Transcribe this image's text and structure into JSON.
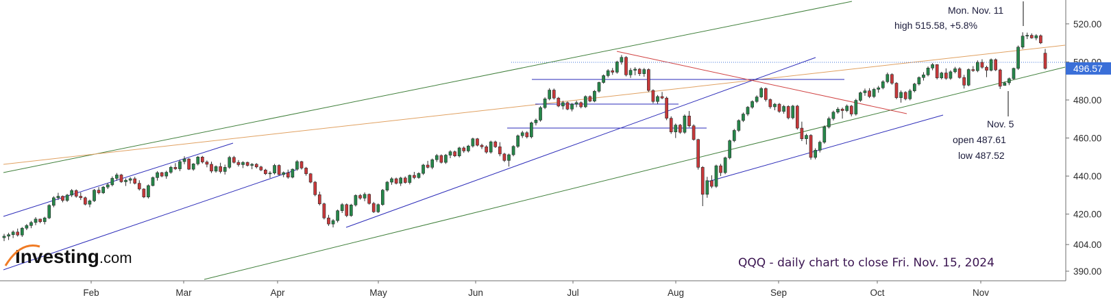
{
  "chart_data": {
    "type": "candlestick",
    "title": "QQQ - daily chart to close Fri. Nov. 15, 2024",
    "watermark": "Investing.com",
    "y_axis": {
      "ticks": [
        390,
        404,
        420,
        440,
        460,
        480,
        500,
        520
      ],
      "tick_labels": [
        "390.00",
        "404.00",
        "420.00",
        "440.00",
        "460.00",
        "480.00",
        "500.00",
        "520.00"
      ],
      "range": [
        388,
        526
      ]
    },
    "x_axis": {
      "tick_labels": [
        "Feb",
        "Mar",
        "Apr",
        "May",
        "Jun",
        "Jul",
        "Aug",
        "Sep",
        "Oct",
        "Nov"
      ]
    },
    "last_price": "496.57",
    "colors": {
      "up": "#26874a",
      "down": "#c8383a",
      "price_badge": "#3a6fd8"
    },
    "annotations": {
      "nov11": [
        "Mon. Nov. 11",
        "high 515.58, +5.8%"
      ],
      "nov5": [
        "Nov. 5",
        "open 487.61",
        "low 487.52"
      ]
    },
    "candles": [
      [
        407.6,
        409.6,
        405.8,
        408.4
      ],
      [
        408.4,
        410.2,
        406.4,
        409.2
      ],
      [
        409.2,
        411.4,
        407.4,
        410.6
      ],
      [
        410.6,
        412.4,
        408.2,
        409.0
      ],
      [
        409.0,
        413.2,
        408.0,
        412.6
      ],
      [
        412.6,
        414.8,
        411.6,
        414.0
      ],
      [
        414.0,
        416.4,
        412.6,
        415.6
      ],
      [
        415.6,
        418.4,
        414.2,
        417.4
      ],
      [
        417.4,
        417.6,
        415.2,
        416.0
      ],
      [
        416.0,
        418.6,
        414.6,
        418.0
      ],
      [
        418.0,
        425.2,
        417.4,
        424.6
      ],
      [
        424.6,
        429.4,
        423.6,
        428.6
      ],
      [
        428.6,
        431.2,
        427.4,
        429.4
      ],
      [
        429.4,
        429.8,
        426.2,
        427.2
      ],
      [
        427.2,
        430.6,
        426.4,
        430.0
      ],
      [
        430.0,
        433.2,
        429.0,
        432.4
      ],
      [
        432.4,
        433.0,
        428.6,
        429.4
      ],
      [
        429.4,
        431.4,
        427.4,
        428.6
      ],
      [
        428.6,
        429.2,
        424.6,
        425.2
      ],
      [
        425.2,
        427.6,
        423.6,
        427.0
      ],
      [
        427.0,
        433.2,
        426.4,
        432.6
      ],
      [
        432.6,
        434.2,
        430.4,
        431.2
      ],
      [
        431.2,
        434.8,
        430.6,
        434.2
      ],
      [
        434.2,
        436.4,
        433.2,
        435.4
      ],
      [
        435.4,
        439.8,
        434.6,
        438.8
      ],
      [
        438.8,
        441.6,
        437.6,
        440.6
      ],
      [
        440.6,
        441.2,
        436.4,
        437.0
      ],
      [
        437.0,
        438.8,
        434.8,
        437.8
      ],
      [
        437.8,
        439.4,
        436.0,
        438.6
      ],
      [
        438.6,
        439.6,
        435.6,
        436.2
      ],
      [
        436.2,
        437.8,
        432.4,
        433.2
      ],
      [
        433.2,
        433.6,
        428.4,
        429.0
      ],
      [
        429.0,
        435.6,
        428.2,
        435.0
      ],
      [
        435.0,
        439.8,
        434.6,
        439.2
      ],
      [
        439.2,
        442.6,
        437.6,
        441.8
      ],
      [
        441.8,
        442.2,
        439.4,
        440.0
      ],
      [
        440.0,
        442.8,
        438.6,
        442.0
      ],
      [
        442.0,
        445.4,
        441.2,
        444.6
      ],
      [
        444.6,
        446.8,
        443.2,
        443.8
      ],
      [
        443.8,
        448.6,
        442.6,
        447.6
      ],
      [
        447.6,
        450.4,
        446.2,
        449.0
      ],
      [
        449.0,
        449.4,
        443.2,
        443.6
      ],
      [
        443.6,
        446.8,
        442.8,
        446.4
      ],
      [
        446.4,
        450.6,
        445.6,
        450.0
      ],
      [
        450.0,
        450.6,
        446.6,
        447.4
      ],
      [
        447.4,
        448.2,
        444.6,
        446.2
      ],
      [
        446.2,
        447.6,
        441.6,
        442.6
      ],
      [
        442.6,
        445.6,
        441.8,
        445.0
      ],
      [
        445.0,
        447.0,
        441.4,
        442.4
      ],
      [
        442.4,
        446.0,
        440.8,
        444.6
      ],
      [
        444.6,
        450.6,
        443.8,
        449.8
      ],
      [
        449.8,
        450.6,
        446.6,
        447.2
      ],
      [
        447.2,
        448.4,
        445.0,
        446.0
      ],
      [
        446.0,
        447.8,
        444.2,
        447.2
      ],
      [
        447.2,
        447.6,
        445.0,
        445.6
      ],
      [
        445.6,
        446.8,
        443.6,
        446.2
      ],
      [
        446.2,
        446.8,
        444.0,
        444.8
      ],
      [
        444.8,
        445.4,
        442.6,
        443.2
      ],
      [
        443.2,
        443.8,
        440.6,
        441.2
      ],
      [
        441.2,
        442.6,
        439.0,
        441.6
      ],
      [
        441.6,
        446.4,
        440.8,
        445.6
      ],
      [
        445.6,
        446.2,
        440.2,
        440.8
      ],
      [
        440.8,
        442.4,
        439.4,
        441.8
      ],
      [
        441.8,
        443.4,
        438.6,
        439.4
      ],
      [
        439.4,
        444.0,
        438.8,
        443.6
      ],
      [
        443.6,
        448.4,
        442.8,
        447.6
      ],
      [
        447.6,
        448.0,
        443.4,
        444.2
      ],
      [
        444.2,
        444.8,
        440.2,
        441.2
      ],
      [
        441.2,
        441.6,
        436.2,
        436.8
      ],
      [
        436.8,
        437.4,
        429.4,
        430.2
      ],
      [
        430.2,
        431.8,
        424.6,
        425.4
      ],
      [
        425.4,
        426.0,
        417.2,
        418.0
      ],
      [
        418.0,
        419.6,
        413.8,
        414.8
      ],
      [
        414.8,
        417.4,
        413.0,
        416.6
      ],
      [
        416.6,
        422.4,
        415.6,
        421.8
      ],
      [
        421.8,
        425.8,
        420.6,
        425.0
      ],
      [
        425.0,
        425.6,
        418.4,
        419.2
      ],
      [
        419.2,
        425.4,
        418.6,
        424.8
      ],
      [
        424.8,
        430.4,
        424.0,
        429.8
      ],
      [
        429.8,
        430.6,
        427.6,
        428.4
      ],
      [
        428.4,
        431.4,
        426.8,
        430.4
      ],
      [
        430.4,
        430.8,
        425.0,
        425.6
      ],
      [
        425.6,
        426.4,
        420.6,
        421.2
      ],
      [
        421.2,
        425.6,
        420.6,
        425.0
      ],
      [
        425.0,
        433.2,
        424.4,
        432.6
      ],
      [
        432.6,
        437.4,
        431.8,
        436.8
      ],
      [
        436.8,
        439.4,
        435.4,
        438.6
      ],
      [
        438.6,
        439.2,
        435.6,
        436.2
      ],
      [
        436.2,
        439.6,
        434.8,
        439.0
      ],
      [
        439.0,
        439.8,
        436.0,
        436.6
      ],
      [
        436.6,
        440.8,
        435.6,
        440.4
      ],
      [
        440.4,
        442.2,
        438.4,
        439.2
      ],
      [
        439.2,
        442.0,
        438.6,
        441.4
      ],
      [
        441.4,
        446.4,
        440.6,
        445.8
      ],
      [
        445.8,
        448.0,
        444.0,
        444.6
      ],
      [
        444.6,
        449.2,
        443.6,
        448.6
      ],
      [
        448.6,
        451.6,
        447.4,
        450.8
      ],
      [
        450.8,
        451.4,
        446.6,
        447.2
      ],
      [
        447.2,
        451.6,
        446.4,
        451.0
      ],
      [
        451.0,
        453.6,
        449.4,
        452.8
      ],
      [
        452.8,
        453.4,
        450.0,
        450.6
      ],
      [
        450.6,
        455.4,
        449.8,
        454.8
      ],
      [
        454.8,
        455.6,
        452.2,
        453.2
      ],
      [
        453.2,
        456.4,
        452.4,
        455.8
      ],
      [
        455.8,
        460.2,
        455.0,
        459.6
      ],
      [
        459.6,
        460.0,
        455.6,
        456.2
      ],
      [
        456.2,
        457.0,
        454.2,
        455.4
      ],
      [
        455.4,
        456.2,
        451.8,
        452.6
      ],
      [
        452.6,
        458.6,
        451.8,
        458.0
      ],
      [
        458.0,
        458.6,
        454.8,
        455.4
      ],
      [
        455.4,
        457.8,
        450.4,
        451.6
      ],
      [
        451.6,
        452.2,
        447.4,
        448.2
      ],
      [
        448.2,
        451.8,
        445.0,
        451.2
      ],
      [
        451.2,
        456.2,
        450.4,
        455.6
      ],
      [
        455.6,
        461.8,
        454.8,
        461.2
      ],
      [
        461.2,
        463.8,
        460.0,
        462.8
      ],
      [
        462.8,
        463.6,
        459.8,
        460.6
      ],
      [
        460.6,
        468.6,
        459.8,
        468.0
      ],
      [
        468.0,
        470.2,
        466.6,
        469.4
      ],
      [
        469.4,
        476.8,
        468.6,
        476.0
      ],
      [
        476.0,
        481.4,
        475.2,
        480.6
      ],
      [
        480.6,
        486.2,
        479.8,
        485.2
      ],
      [
        485.2,
        486.0,
        480.2,
        481.0
      ],
      [
        481.0,
        481.6,
        476.2,
        476.8
      ],
      [
        476.8,
        479.6,
        475.0,
        478.6
      ],
      [
        478.6,
        479.2,
        474.6,
        475.2
      ],
      [
        475.2,
        478.4,
        474.0,
        477.8
      ],
      [
        477.8,
        479.6,
        476.2,
        478.6
      ],
      [
        478.6,
        479.2,
        475.6,
        476.4
      ],
      [
        476.4,
        482.4,
        475.8,
        481.8
      ],
      [
        481.8,
        482.4,
        478.8,
        479.4
      ],
      [
        479.4,
        485.2,
        478.8,
        484.6
      ],
      [
        484.6,
        489.6,
        483.8,
        489.2
      ],
      [
        489.2,
        493.4,
        488.6,
        492.8
      ],
      [
        492.8,
        496.2,
        491.8,
        495.4
      ],
      [
        495.4,
        496.8,
        493.2,
        494.6
      ],
      [
        494.6,
        500.6,
        493.8,
        500.0
      ],
      [
        500.0,
        503.6,
        498.6,
        502.4
      ],
      [
        502.4,
        503.0,
        492.4,
        493.2
      ],
      [
        493.2,
        496.8,
        491.6,
        495.6
      ],
      [
        495.6,
        497.2,
        493.0,
        496.2
      ],
      [
        496.2,
        496.8,
        492.6,
        493.8
      ],
      [
        493.8,
        496.8,
        492.2,
        496.0
      ],
      [
        496.0,
        496.6,
        484.2,
        485.0
      ],
      [
        485.0,
        485.6,
        478.2,
        479.2
      ],
      [
        479.2,
        482.6,
        478.0,
        481.8
      ],
      [
        481.8,
        484.2,
        480.4,
        481.0
      ],
      [
        481.0,
        481.8,
        469.4,
        470.4
      ],
      [
        470.4,
        471.4,
        462.2,
        463.2
      ],
      [
        463.2,
        467.6,
        460.0,
        466.8
      ],
      [
        466.8,
        467.4,
        462.2,
        463.0
      ],
      [
        463.0,
        472.4,
        462.2,
        471.6
      ],
      [
        471.6,
        474.2,
        465.6,
        466.4
      ],
      [
        466.4,
        467.2,
        458.6,
        459.2
      ],
      [
        459.2,
        459.6,
        443.4,
        444.6
      ],
      [
        444.6,
        445.2,
        424.2,
        430.4
      ],
      [
        430.4,
        439.6,
        428.6,
        437.6
      ],
      [
        437.6,
        440.4,
        433.6,
        434.6
      ],
      [
        434.6,
        446.0,
        433.8,
        445.4
      ],
      [
        445.4,
        446.4,
        440.0,
        441.8
      ],
      [
        441.8,
        450.2,
        441.0,
        449.6
      ],
      [
        449.6,
        459.2,
        448.8,
        458.6
      ],
      [
        458.6,
        464.8,
        457.8,
        464.0
      ],
      [
        464.0,
        469.8,
        463.2,
        469.2
      ],
      [
        469.2,
        473.4,
        468.4,
        472.6
      ],
      [
        472.6,
        476.8,
        471.6,
        476.2
      ],
      [
        476.2,
        479.8,
        475.4,
        479.2
      ],
      [
        479.2,
        482.4,
        478.4,
        481.6
      ],
      [
        481.6,
        486.8,
        481.0,
        486.0
      ],
      [
        486.0,
        486.6,
        479.2,
        480.2
      ],
      [
        480.2,
        480.8,
        475.4,
        476.4
      ],
      [
        476.4,
        478.4,
        474.6,
        477.8
      ],
      [
        477.8,
        478.4,
        473.2,
        474.0
      ],
      [
        474.0,
        477.4,
        472.8,
        476.6
      ],
      [
        476.6,
        477.2,
        469.8,
        470.6
      ],
      [
        470.6,
        477.4,
        469.8,
        476.8
      ],
      [
        476.8,
        477.4,
        464.4,
        465.2
      ],
      [
        465.2,
        468.6,
        458.4,
        459.6
      ],
      [
        459.6,
        462.2,
        456.6,
        461.4
      ],
      [
        461.4,
        462.0,
        448.6,
        449.8
      ],
      [
        449.8,
        454.6,
        448.8,
        453.6
      ],
      [
        453.6,
        458.6,
        452.4,
        457.8
      ],
      [
        457.8,
        466.6,
        457.0,
        465.8
      ],
      [
        465.8,
        471.2,
        465.0,
        470.2
      ],
      [
        470.2,
        474.4,
        469.2,
        473.6
      ],
      [
        473.6,
        476.2,
        472.8,
        475.2
      ],
      [
        475.2,
        476.0,
        470.2,
        474.4
      ],
      [
        474.4,
        477.6,
        473.6,
        476.8
      ],
      [
        476.8,
        477.4,
        471.4,
        472.6
      ],
      [
        472.6,
        480.6,
        471.8,
        479.8
      ],
      [
        479.8,
        484.4,
        479.0,
        483.8
      ],
      [
        483.8,
        486.0,
        482.2,
        484.8
      ],
      [
        484.8,
        486.2,
        481.0,
        481.8
      ],
      [
        481.8,
        486.4,
        481.0,
        485.6
      ],
      [
        485.6,
        487.4,
        483.8,
        486.4
      ],
      [
        486.4,
        490.4,
        485.6,
        489.6
      ],
      [
        489.6,
        494.4,
        488.8,
        493.4
      ],
      [
        493.4,
        494.0,
        488.0,
        488.8
      ],
      [
        488.8,
        489.4,
        480.4,
        481.2
      ],
      [
        481.2,
        485.0,
        478.6,
        484.0
      ],
      [
        484.0,
        484.6,
        479.8,
        480.6
      ],
      [
        480.6,
        485.8,
        479.8,
        484.8
      ],
      [
        484.8,
        489.0,
        484.0,
        488.4
      ],
      [
        488.4,
        492.4,
        487.6,
        491.8
      ],
      [
        491.8,
        494.6,
        490.2,
        493.2
      ],
      [
        493.2,
        497.6,
        492.4,
        496.8
      ],
      [
        496.8,
        499.4,
        495.6,
        498.6
      ],
      [
        498.6,
        498.8,
        490.8,
        491.6
      ],
      [
        491.6,
        494.8,
        490.8,
        494.2
      ],
      [
        494.2,
        496.6,
        490.6,
        491.4
      ],
      [
        491.4,
        495.6,
        490.6,
        494.8
      ],
      [
        494.8,
        497.4,
        494.0,
        496.4
      ],
      [
        496.4,
        497.2,
        491.2,
        491.8
      ],
      [
        491.8,
        493.2,
        486.0,
        487.8
      ],
      [
        487.8,
        496.6,
        487.2,
        496.0
      ],
      [
        496.0,
        497.8,
        494.8,
        495.4
      ],
      [
        495.4,
        500.8,
        494.6,
        499.8
      ],
      [
        499.8,
        501.4,
        496.4,
        497.2
      ],
      [
        497.2,
        498.0,
        492.0,
        495.6
      ],
      [
        495.6,
        501.8,
        495.0,
        501.2
      ],
      [
        501.2,
        501.8,
        495.2,
        495.8
      ],
      [
        495.8,
        496.4,
        485.8,
        487.2
      ],
      [
        487.61,
        489.6,
        487.52,
        489.0
      ],
      [
        489.0,
        491.8,
        487.8,
        491.2
      ],
      [
        491.2,
        497.0,
        490.6,
        496.6
      ],
      [
        496.6,
        508.6,
        495.8,
        507.8
      ],
      [
        507.8,
        515.58,
        506.8,
        513.6
      ],
      [
        513.6,
        515.4,
        512.0,
        514.0
      ],
      [
        514.0,
        515.0,
        512.2,
        512.6
      ],
      [
        512.6,
        514.6,
        511.4,
        513.8
      ],
      [
        513.8,
        514.4,
        509.4,
        510.0
      ],
      [
        504.6,
        506.8,
        496.0,
        496.57
      ]
    ]
  }
}
